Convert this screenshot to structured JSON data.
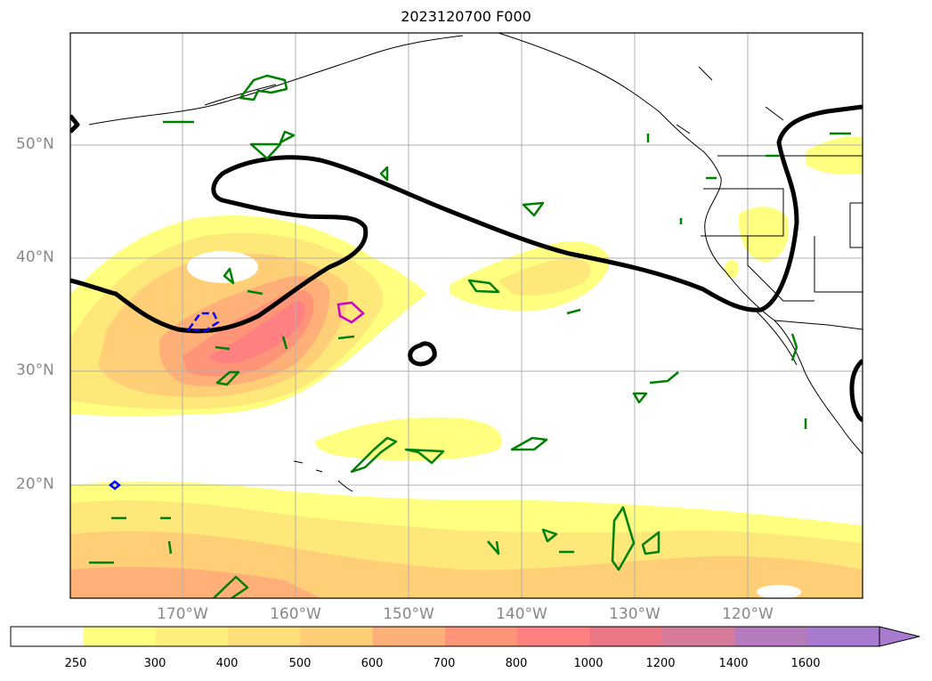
{
  "title": "2023120700 F000",
  "lat_labels": [
    "50°N",
    "40°N",
    "30°N",
    "20°N"
  ],
  "lon_labels": [
    "170°W",
    "160°W",
    "150°W",
    "140°W",
    "130°W",
    "120°W"
  ],
  "colorbar": {
    "ticks": [
      "250",
      "300",
      "400",
      "500",
      "600",
      "700",
      "800",
      "1000",
      "1200",
      "1400",
      "1600"
    ],
    "colors": [
      "#ffffff",
      "#ffff80",
      "#ffef7c",
      "#ffdf79",
      "#ffcf78",
      "#ffaf78",
      "#ff9478",
      "#ff8080",
      "#ea7686",
      "#d67b9c",
      "#b47cbd",
      "#a87bd0"
    ]
  },
  "map": {
    "region": "North Pacific and western North America",
    "contour_colors": {
      "thick": "#000000",
      "positive": "#008000",
      "negative": "#0000ff",
      "highlight": "#cc00cc"
    }
  }
}
